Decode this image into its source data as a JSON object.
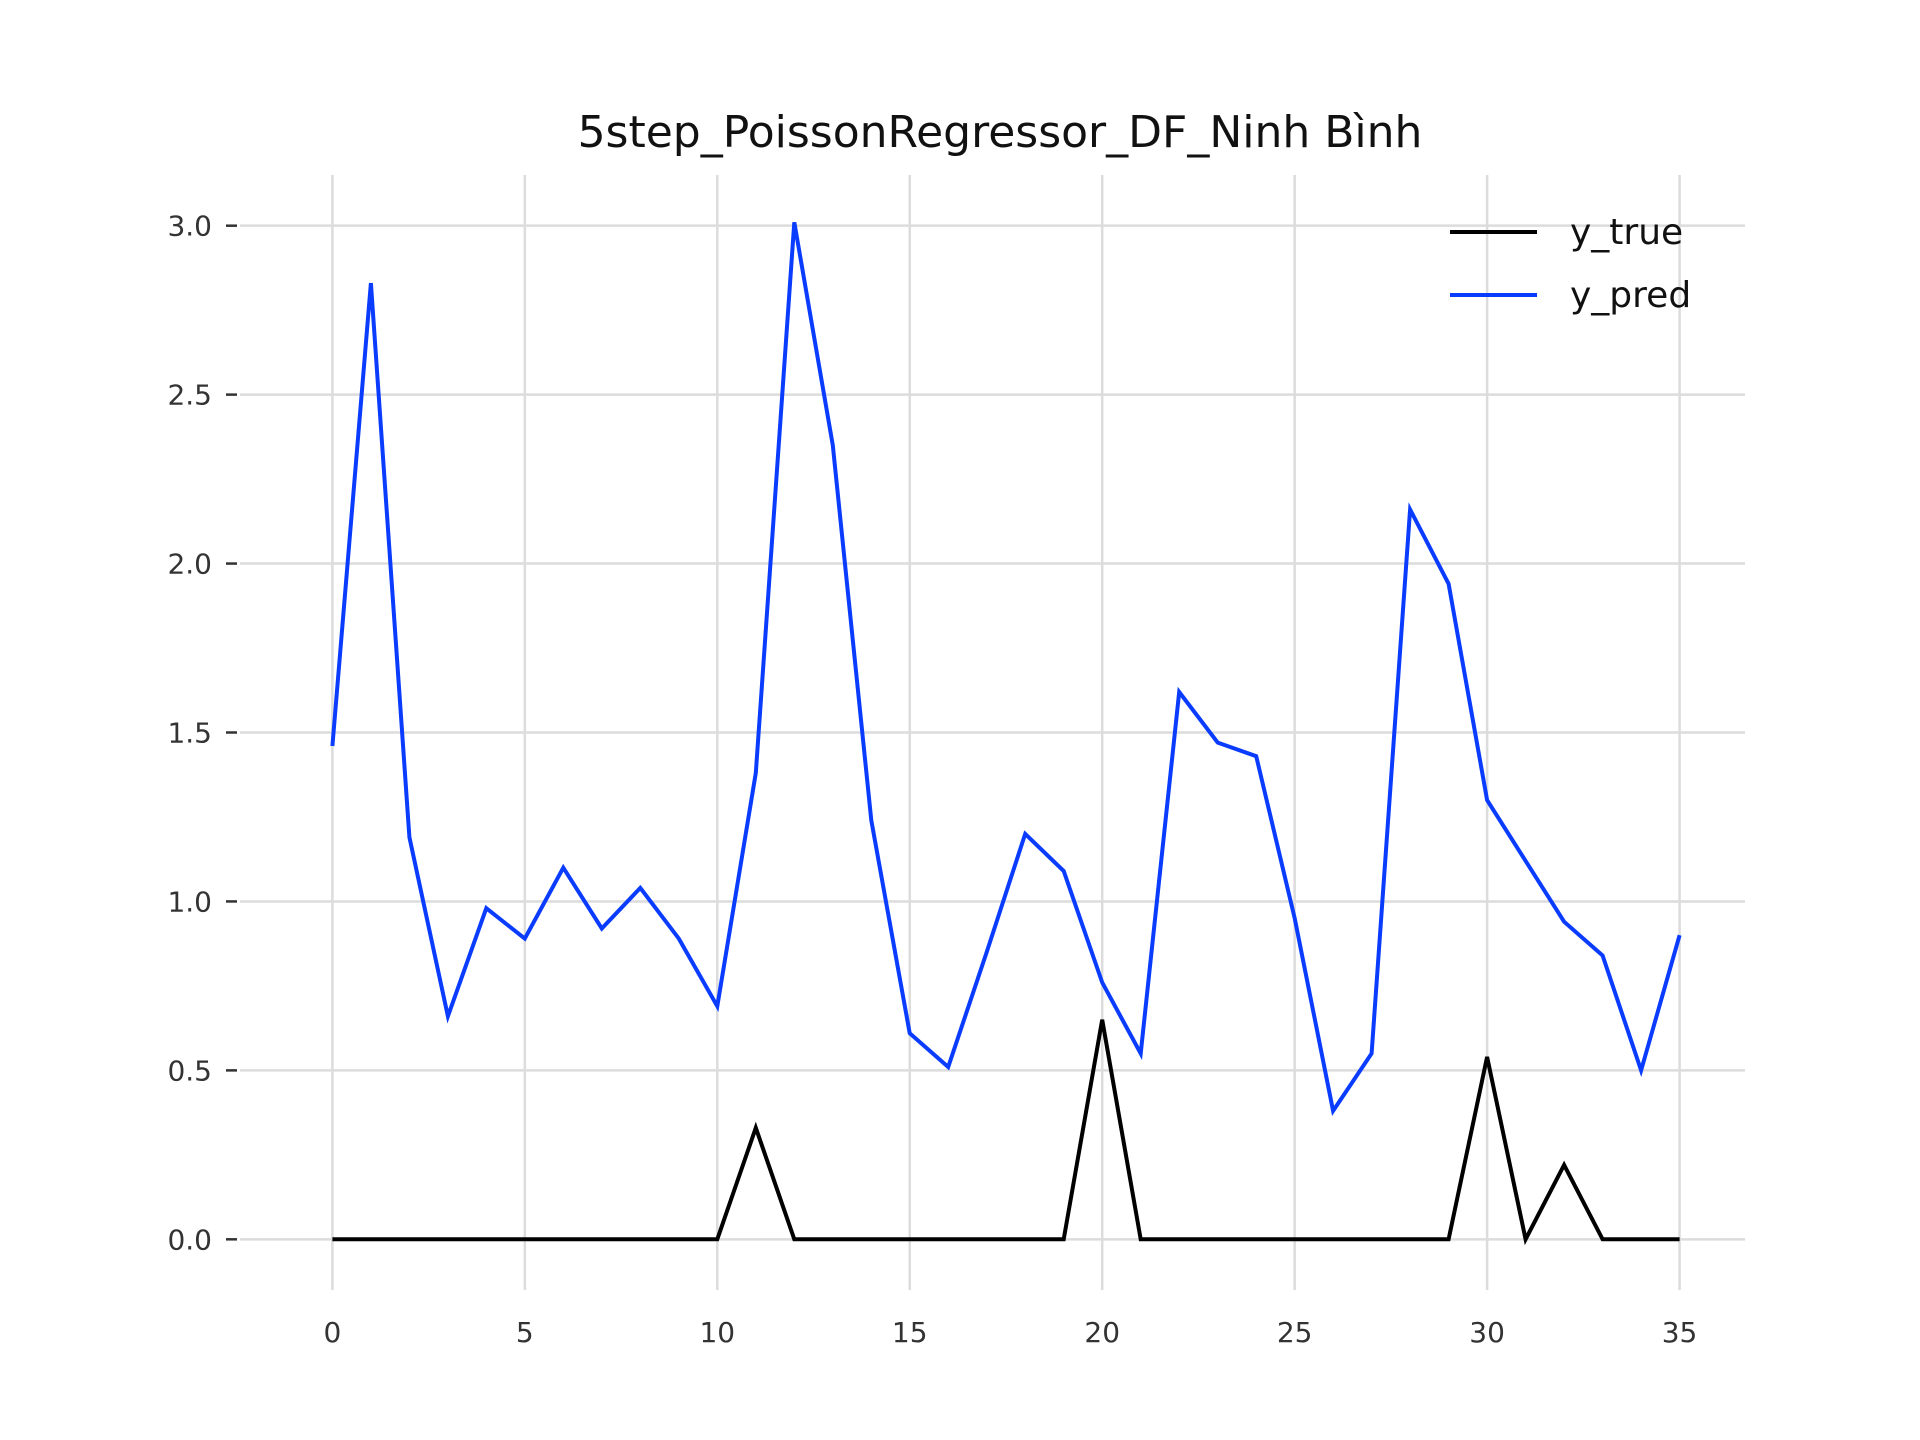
{
  "chart_data": {
    "type": "line",
    "title": "5step_PoissonRegressor_DF_Ninh Bình",
    "xlabel": "",
    "ylabel": "",
    "xlim": [
      -2.4,
      36.7
    ],
    "ylim": [
      -0.15,
      3.15
    ],
    "xticks": [
      0,
      5,
      10,
      15,
      20,
      25,
      30,
      35
    ],
    "yticks": [
      0.0,
      0.5,
      1.0,
      1.5,
      2.0,
      2.5,
      3.0
    ],
    "xtick_labels": [
      "0",
      "5",
      "10",
      "15",
      "20",
      "25",
      "30",
      "35"
    ],
    "ytick_labels": [
      "0.0",
      "0.5",
      "1.0",
      "1.5",
      "2.0",
      "2.5",
      "3.0"
    ],
    "grid": true,
    "legend_position": "top-right",
    "x": [
      0,
      1,
      2,
      3,
      4,
      5,
      6,
      7,
      8,
      9,
      10,
      11,
      12,
      13,
      14,
      15,
      16,
      17,
      18,
      19,
      20,
      21,
      22,
      23,
      24,
      25,
      26,
      27,
      28,
      29,
      30,
      31,
      32,
      33,
      34,
      35
    ],
    "series": [
      {
        "name": "y_true",
        "color": "#000000",
        "values": [
          0,
          0,
          0,
          0,
          0,
          0,
          0,
          0,
          0,
          0,
          0,
          0.33,
          0,
          0,
          0,
          0,
          0,
          0,
          0,
          0,
          0.65,
          0,
          0,
          0,
          0,
          0,
          0,
          0,
          0,
          0,
          0.54,
          0,
          0.22,
          0,
          0,
          0
        ]
      },
      {
        "name": "y_pred",
        "color": "#0a3cff",
        "values": [
          1.46,
          2.83,
          1.19,
          0.66,
          0.98,
          0.89,
          1.1,
          0.92,
          1.04,
          0.89,
          0.69,
          1.38,
          3.01,
          2.35,
          1.24,
          0.61,
          0.51,
          0.85,
          1.2,
          1.09,
          0.76,
          0.55,
          1.62,
          1.47,
          1.43,
          0.95,
          0.38,
          0.55,
          2.16,
          1.94,
          1.3,
          1.12,
          0.94,
          0.84,
          0.5,
          0.9
        ]
      }
    ]
  }
}
